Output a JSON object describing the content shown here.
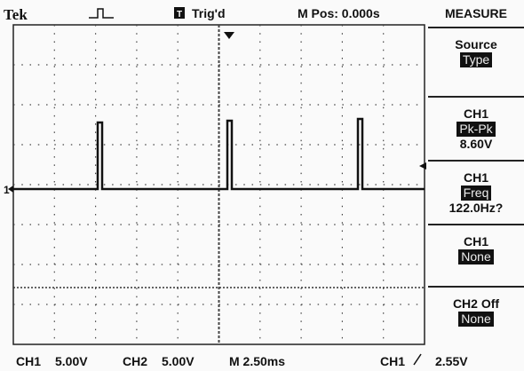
{
  "header": {
    "brand": "Tek",
    "trigger_icon": "T",
    "trigger_status": "Trig'd",
    "position": "M Pos: 0.000s",
    "menu_title": "MEASURE"
  },
  "menu": [
    {
      "title": "Source",
      "value": "Type"
    },
    {
      "title": "CH1",
      "value": "Pk-Pk",
      "reading": "8.60V"
    },
    {
      "title": "CH1",
      "value": "Freq",
      "reading": "122.0Hz?"
    },
    {
      "title": "CH1",
      "value": "None"
    },
    {
      "title": "CH2 Off",
      "value": "None"
    }
  ],
  "ground_marker": "1",
  "footer": {
    "ch1_label": "CH1",
    "ch1_scale": "5.00V",
    "ch2_label": "CH2",
    "ch2_scale": "5.00V",
    "timebase": "M 2.50ms",
    "trigger_source": "CH1",
    "trigger_level": "2.55V"
  }
}
